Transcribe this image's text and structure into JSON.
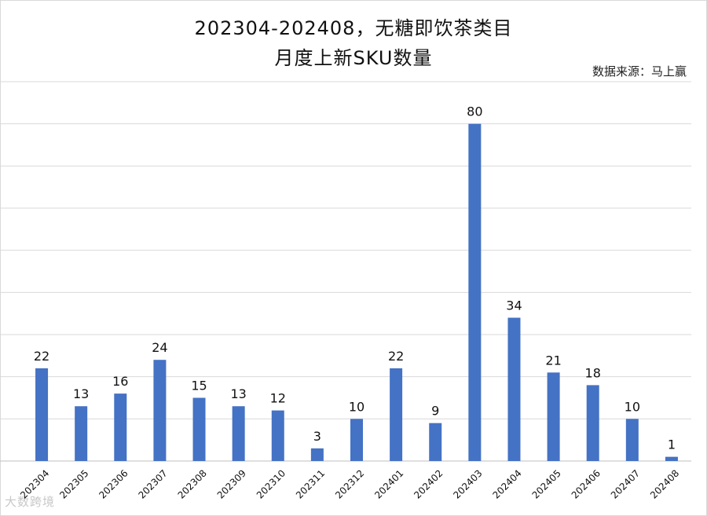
{
  "page": {
    "title_line1": "202304-202408，无糖即饮茶类目",
    "title_line2": "月度上新SKU数量",
    "source": "数据来源：马上赢",
    "watermark": "大数跨境"
  },
  "colors": {
    "bar": "#4472C4",
    "grid": "#d9d9d9",
    "axis": "#bfbfbf"
  },
  "chart_data": {
    "type": "bar",
    "title": "202304-202408，无糖即饮茶类目 月度上新SKU数量",
    "xlabel": "",
    "ylabel": "",
    "ylim": [
      0,
      90
    ],
    "grid": true,
    "legend": "none",
    "categories": [
      "202304",
      "202305",
      "202306",
      "202307",
      "202308",
      "202309",
      "202310",
      "202311",
      "202312",
      "202401",
      "202402",
      "202403",
      "202404",
      "202405",
      "202406",
      "202407",
      "202408"
    ],
    "values": [
      22,
      13,
      16,
      24,
      15,
      13,
      12,
      3,
      10,
      22,
      9,
      80,
      34,
      21,
      18,
      10,
      1
    ]
  }
}
